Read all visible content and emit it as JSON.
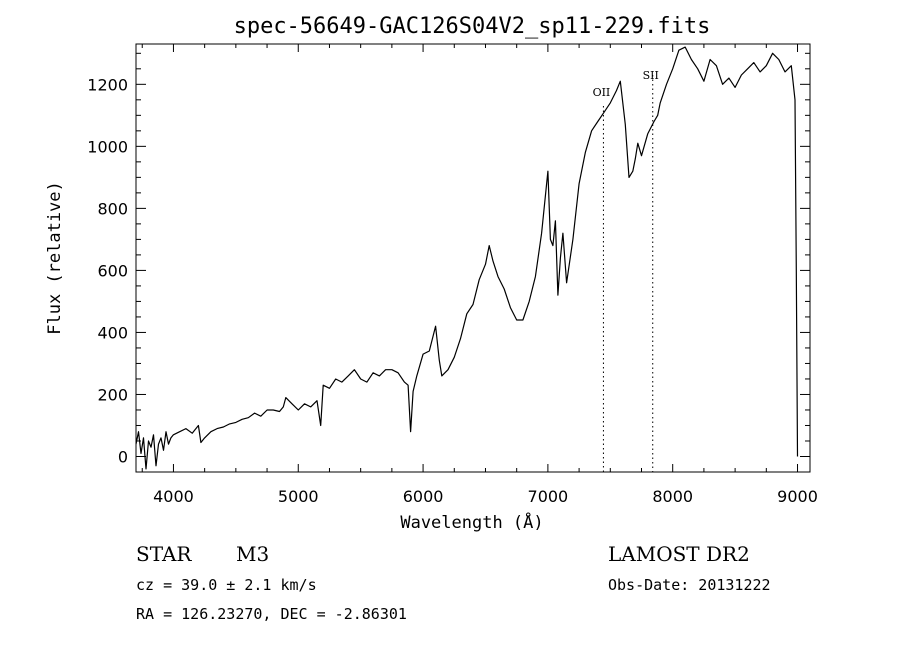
{
  "chart_data": {
    "type": "line",
    "title": "spec-56649-GAC126S04V2_sp11-229.fits",
    "xlabel": "Wavelength (Å)",
    "ylabel": "Flux (relative)",
    "xlim": [
      3700,
      9100
    ],
    "ylim": [
      -50,
      1330
    ],
    "xticks": [
      4000,
      5000,
      6000,
      7000,
      8000,
      9000
    ],
    "yticks": [
      0,
      200,
      400,
      600,
      800,
      1000,
      1200
    ],
    "grid": false,
    "line_annotations": [
      {
        "label": "OII",
        "x": 7445
      },
      {
        "label": "SII",
        "x": 7840
      }
    ],
    "series": [
      {
        "x": [
          3700,
          3720,
          3740,
          3760,
          3780,
          3800,
          3820,
          3840,
          3860,
          3880,
          3900,
          3920,
          3940,
          3960,
          3980,
          4000,
          4050,
          4100,
          4150,
          4200,
          4220,
          4250,
          4300,
          4350,
          4400,
          4450,
          4500,
          4550,
          4600,
          4650,
          4700,
          4750,
          4800,
          4850,
          4880,
          4900,
          4950,
          5000,
          5050,
          5100,
          5150,
          5180,
          5200,
          5250,
          5300,
          5350,
          5400,
          5450,
          5500,
          5550,
          5600,
          5650,
          5700,
          5750,
          5800,
          5850,
          5880,
          5900,
          5920,
          5950,
          6000,
          6050,
          6100,
          6130,
          6150,
          6200,
          6250,
          6300,
          6350,
          6400,
          6450,
          6500,
          6530,
          6560,
          6600,
          6650,
          6700,
          6750,
          6800,
          6850,
          6900,
          6950,
          7000,
          7020,
          7040,
          7060,
          7080,
          7100,
          7120,
          7150,
          7200,
          7250,
          7300,
          7350,
          7400,
          7450,
          7500,
          7550,
          7580,
          7620,
          7650,
          7680,
          7700,
          7720,
          7750,
          7800,
          7850,
          7880,
          7900,
          7950,
          8000,
          8050,
          8100,
          8150,
          8200,
          8250,
          8300,
          8350,
          8400,
          8450,
          8500,
          8550,
          8600,
          8650,
          8700,
          8750,
          8800,
          8850,
          8900,
          8950,
          8980,
          8990,
          9000
        ],
        "y": [
          40,
          80,
          10,
          60,
          -40,
          50,
          30,
          70,
          -30,
          40,
          60,
          20,
          80,
          40,
          60,
          70,
          80,
          90,
          75,
          100,
          45,
          60,
          80,
          90,
          95,
          105,
          110,
          120,
          125,
          140,
          130,
          150,
          150,
          145,
          160,
          190,
          170,
          150,
          170,
          160,
          180,
          100,
          230,
          220,
          250,
          240,
          260,
          280,
          250,
          240,
          270,
          260,
          280,
          280,
          270,
          240,
          230,
          80,
          210,
          260,
          330,
          340,
          420,
          310,
          260,
          280,
          320,
          380,
          460,
          490,
          570,
          620,
          680,
          630,
          580,
          540,
          480,
          440,
          440,
          500,
          580,
          720,
          920,
          700,
          680,
          760,
          520,
          640,
          720,
          560,
          700,
          880,
          980,
          1050,
          1080,
          1110,
          1140,
          1180,
          1210,
          1070,
          900,
          920,
          960,
          1010,
          970,
          1040,
          1080,
          1100,
          1140,
          1200,
          1250,
          1310,
          1320,
          1280,
          1250,
          1210,
          1280,
          1260,
          1200,
          1220,
          1190,
          1230,
          1250,
          1270,
          1240,
          1260,
          1300,
          1280,
          1240,
          1260,
          1150,
          600,
          0
        ]
      }
    ]
  },
  "footer": {
    "class_label": "STAR",
    "subclass": "M3",
    "survey": "LAMOST DR2",
    "cz": "cz = 39.0 ± 2.1 km/s",
    "obs_date": "Obs-Date: 20131222",
    "coords": "RA = 126.23270, DEC =  -2.86301"
  }
}
